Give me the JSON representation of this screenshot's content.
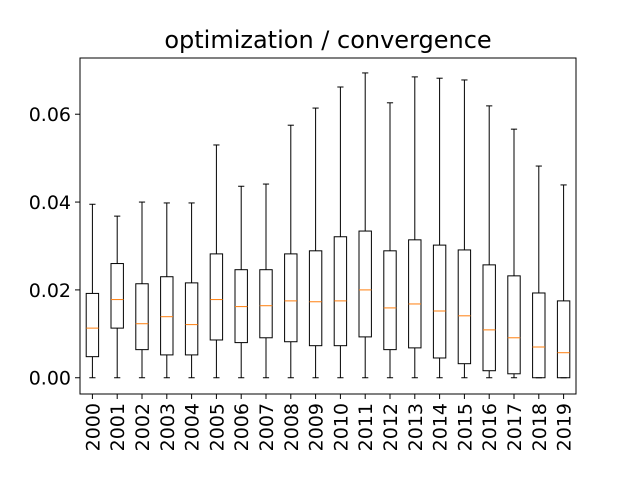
{
  "chart_data": {
    "type": "boxplot",
    "title": "optimization / convergence",
    "xlabel": "",
    "ylabel": "",
    "categories": [
      "2000",
      "2001",
      "2002",
      "2003",
      "2004",
      "2005",
      "2006",
      "2007",
      "2008",
      "2009",
      "2010",
      "2011",
      "2012",
      "2013",
      "2014",
      "2015",
      "2016",
      "2017",
      "2018",
      "2019"
    ],
    "yticks": [
      "0.00",
      "0.02",
      "0.04",
      "0.06"
    ],
    "ytick_values": [
      0.0,
      0.02,
      0.04,
      0.06
    ],
    "ylim": [
      -0.0037,
      0.0728
    ],
    "grid": false,
    "boxes": [
      {
        "whisker_low": 0.0,
        "q1": 0.0048,
        "median": 0.0113,
        "q3": 0.0192,
        "whisker_high": 0.0395
      },
      {
        "whisker_low": 0.0,
        "q1": 0.0113,
        "median": 0.0178,
        "q3": 0.026,
        "whisker_high": 0.0368
      },
      {
        "whisker_low": 0.0,
        "q1": 0.0064,
        "median": 0.0123,
        "q3": 0.0214,
        "whisker_high": 0.04
      },
      {
        "whisker_low": 0.0,
        "q1": 0.0052,
        "median": 0.0139,
        "q3": 0.023,
        "whisker_high": 0.0398
      },
      {
        "whisker_low": 0.0,
        "q1": 0.0052,
        "median": 0.0121,
        "q3": 0.0216,
        "whisker_high": 0.0398
      },
      {
        "whisker_low": 0.0,
        "q1": 0.0086,
        "median": 0.0178,
        "q3": 0.0282,
        "whisker_high": 0.053
      },
      {
        "whisker_low": 0.0,
        "q1": 0.008,
        "median": 0.0162,
        "q3": 0.0246,
        "whisker_high": 0.0436
      },
      {
        "whisker_low": 0.0,
        "q1": 0.0091,
        "median": 0.0164,
        "q3": 0.0246,
        "whisker_high": 0.0441
      },
      {
        "whisker_low": 0.0,
        "q1": 0.0082,
        "median": 0.0175,
        "q3": 0.0282,
        "whisker_high": 0.0575
      },
      {
        "whisker_low": 0.0,
        "q1": 0.0073,
        "median": 0.0173,
        "q3": 0.0289,
        "whisker_high": 0.0614
      },
      {
        "whisker_low": 0.0,
        "q1": 0.0073,
        "median": 0.0175,
        "q3": 0.0321,
        "whisker_high": 0.0662
      },
      {
        "whisker_low": 0.0,
        "q1": 0.0093,
        "median": 0.02,
        "q3": 0.0334,
        "whisker_high": 0.0694
      },
      {
        "whisker_low": 0.0,
        "q1": 0.0064,
        "median": 0.0159,
        "q3": 0.0289,
        "whisker_high": 0.0626
      },
      {
        "whisker_low": 0.0,
        "q1": 0.0068,
        "median": 0.0168,
        "q3": 0.0314,
        "whisker_high": 0.0685
      },
      {
        "whisker_low": 0.0,
        "q1": 0.0045,
        "median": 0.0152,
        "q3": 0.0302,
        "whisker_high": 0.0682
      },
      {
        "whisker_low": 0.0,
        "q1": 0.0032,
        "median": 0.0141,
        "q3": 0.0291,
        "whisker_high": 0.0678
      },
      {
        "whisker_low": 0.0,
        "q1": 0.0016,
        "median": 0.0109,
        "q3": 0.0257,
        "whisker_high": 0.0619
      },
      {
        "whisker_low": 0.0,
        "q1": 0.0009,
        "median": 0.0091,
        "q3": 0.0232,
        "whisker_high": 0.0566
      },
      {
        "whisker_low": 0.0,
        "q1": 0.0,
        "median": 0.007,
        "q3": 0.0193,
        "whisker_high": 0.0482
      },
      {
        "whisker_low": 0.0,
        "q1": 0.0,
        "median": 0.0057,
        "q3": 0.0175,
        "whisker_high": 0.0439
      }
    ],
    "colors": {
      "box": "#000000",
      "median": "#ff7f0e",
      "background": "#ffffff"
    }
  }
}
